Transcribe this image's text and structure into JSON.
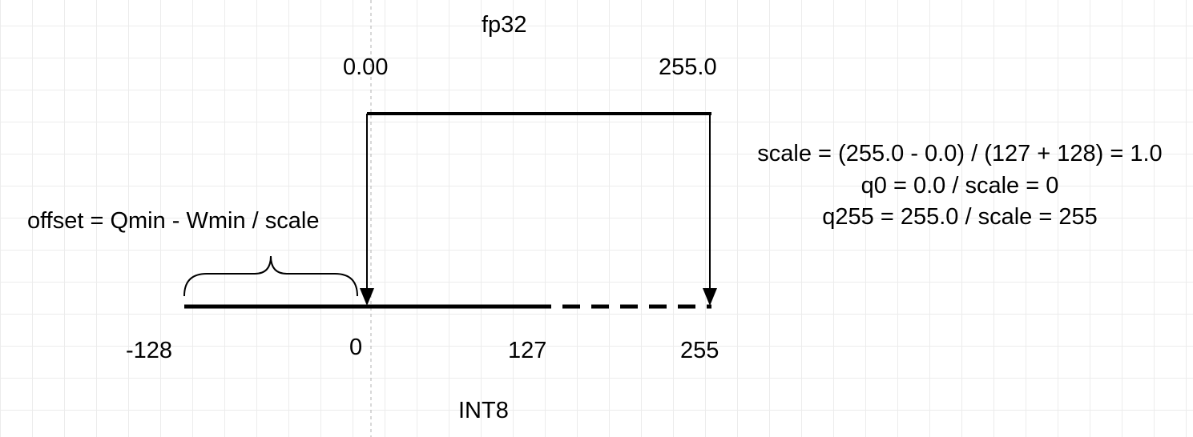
{
  "labels": {
    "fp32": "fp32",
    "int8": "INT8",
    "fp_min": "0.00",
    "fp_max": "255.0",
    "int_min": "-128",
    "int_zero": "0",
    "int_127": "127",
    "int_255": "255",
    "offset": "offset = Qmin - Wmin / scale"
  },
  "formulas": [
    "scale = (255.0 - 0.0) / (127 + 128) = 1.0",
    "q0 = 0.0 / scale = 0",
    "q255 = 255.0 / scale = 255"
  ],
  "colors": {
    "ink": "#000000",
    "grid": "#ececec",
    "guide": "#b0b0b0"
  }
}
